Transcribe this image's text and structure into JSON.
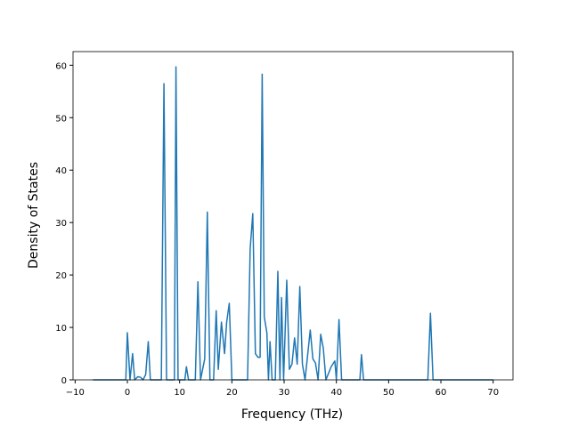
{
  "chart_data": {
    "type": "line",
    "xlabel": "Frequency (THz)",
    "ylabel": "Density of States",
    "x": [
      -6.6,
      -0.3,
      0,
      0.5,
      1,
      1.4,
      2,
      2.5,
      3,
      3.5,
      4,
      4.4,
      6.5,
      7,
      7.5,
      9,
      9.3,
      9.7,
      11,
      11.3,
      11.7,
      13,
      13.5,
      14,
      14.8,
      15.3,
      15.8,
      16.5,
      17,
      17.4,
      18,
      18.6,
      19,
      19.5,
      20,
      23,
      23.5,
      24,
      24.5,
      25,
      25.4,
      25.8,
      26.2,
      26.7,
      27,
      27.3,
      27.7,
      28.3,
      28.8,
      29.2,
      29.5,
      29.9,
      30.5,
      31,
      31.5,
      32,
      32.5,
      33,
      33.5,
      34,
      35,
      35.5,
      36,
      36.5,
      37,
      37.5,
      38,
      39,
      39.7,
      40,
      40.5,
      41,
      44.5,
      44.8,
      45.2,
      57.5,
      58,
      58.5,
      70
    ],
    "series": [
      {
        "color": "#1f77b4",
        "values": [
          0,
          0,
          9,
          0,
          5,
          0,
          0.6,
          0.5,
          0,
          1,
          7.3,
          0,
          0,
          56.5,
          0,
          0,
          59.7,
          0,
          0,
          2.5,
          0,
          0,
          18.7,
          0,
          4,
          32,
          0,
          0,
          13.2,
          2,
          11,
          5,
          11,
          14.6,
          0,
          0,
          25,
          31.7,
          5,
          4.3,
          4.3,
          58.3,
          12,
          9,
          0,
          7.3,
          0,
          0,
          20.7,
          0,
          15.7,
          0,
          19,
          2,
          3,
          8,
          3,
          17.8,
          3,
          0,
          9.5,
          4,
          3.2,
          0,
          8.7,
          6,
          0,
          2.5,
          3.6,
          0,
          11.5,
          0,
          0,
          4.8,
          0,
          0,
          12.7,
          0,
          0
        ]
      }
    ],
    "xlim": [
      -10.4,
      73.8
    ],
    "ylim": [
      0,
      62.6
    ],
    "xticks": [
      {
        "value": -10,
        "label": "−10"
      },
      0,
      10,
      20,
      30,
      40,
      50,
      60,
      70
    ],
    "yticks": [
      0,
      10,
      20,
      30,
      40,
      50,
      60
    ]
  }
}
